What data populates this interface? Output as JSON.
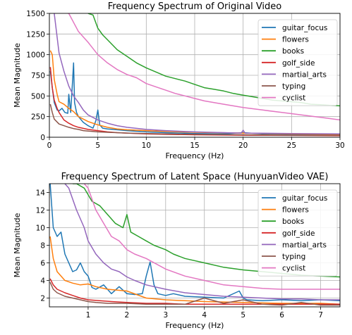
{
  "chart_data": [
    {
      "type": "line",
      "title": "Frequency Spectrum of Original Video",
      "xlabel": "Frequency (Hz)",
      "ylabel": "Mean Magnitude",
      "xlim": [
        0,
        30
      ],
      "ylim": [
        0,
        1500
      ],
      "xticks": [
        0,
        5,
        10,
        15,
        20,
        25,
        30
      ],
      "yticks": [
        0,
        250,
        500,
        750,
        1000,
        1250,
        1500
      ],
      "grid": true,
      "legend_position": "top-right",
      "series": [
        {
          "name": "guitar_focus",
          "color": "#1f77b4",
          "x": [
            0.1,
            0.3,
            0.5,
            0.8,
            1.0,
            1.3,
            1.6,
            1.9,
            2.0,
            2.2,
            2.4,
            2.5,
            2.6,
            2.8,
            3.0,
            3.5,
            4.0,
            4.5,
            4.8,
            5.0,
            5.2,
            5.5,
            6,
            7,
            8,
            10,
            12,
            15,
            18,
            20,
            22,
            25,
            28,
            30
          ],
          "y": [
            800,
            600,
            420,
            330,
            320,
            350,
            300,
            290,
            520,
            300,
            700,
            900,
            420,
            300,
            250,
            180,
            140,
            110,
            200,
            330,
            150,
            110,
            100,
            90,
            80,
            65,
            55,
            45,
            40,
            55,
            40,
            35,
            30,
            30
          ]
        },
        {
          "name": "flowers",
          "color": "#ff7f0e",
          "x": [
            0.1,
            0.3,
            0.5,
            0.8,
            1.0,
            1.5,
            2.0,
            2.5,
            3.0,
            4,
            5,
            6,
            7,
            8,
            10,
            12,
            15,
            20,
            25,
            30
          ],
          "y": [
            1050,
            1000,
            700,
            520,
            430,
            400,
            350,
            310,
            250,
            190,
            150,
            120,
            100,
            90,
            80,
            70,
            60,
            50,
            40,
            35
          ]
        },
        {
          "name": "books",
          "color": "#2ca02c",
          "x": [
            4.0,
            4.5,
            5,
            5.5,
            6,
            7,
            8,
            9,
            10,
            11,
            12,
            13,
            14,
            15,
            16,
            17,
            18,
            19,
            20,
            21,
            22,
            23,
            24,
            25,
            26,
            27,
            28,
            29,
            30
          ],
          "y": [
            1500,
            1480,
            1320,
            1240,
            1180,
            1060,
            980,
            900,
            840,
            790,
            740,
            710,
            680,
            640,
            600,
            580,
            560,
            530,
            510,
            490,
            470,
            450,
            440,
            430,
            420,
            400,
            395,
            385,
            380
          ]
        },
        {
          "name": "golf_side",
          "color": "#d62728",
          "x": [
            0.1,
            0.3,
            0.5,
            0.8,
            1.0,
            1.5,
            2.0,
            2.5,
            3.0,
            4,
            5,
            6,
            7,
            8,
            10,
            12,
            15,
            20,
            25,
            30
          ],
          "y": [
            850,
            600,
            450,
            350,
            300,
            210,
            170,
            140,
            120,
            95,
            80,
            65,
            55,
            50,
            40,
            35,
            30,
            25,
            22,
            20
          ]
        },
        {
          "name": "martial_arts",
          "color": "#9467bd",
          "x": [
            0.5,
            1.0,
            1.5,
            2.0,
            2.5,
            3.0,
            3.5,
            4,
            5,
            6,
            7,
            8,
            10,
            12,
            15,
            19.8,
            20,
            20.2,
            25,
            30
          ],
          "y": [
            1500,
            1020,
            800,
            620,
            500,
            420,
            330,
            270,
            210,
            170,
            140,
            120,
            95,
            80,
            65,
            50,
            85,
            50,
            45,
            40
          ]
        },
        {
          "name": "typing",
          "color": "#8c564b",
          "x": [
            0.1,
            0.3,
            0.5,
            1.0,
            1.5,
            2.0,
            2.5,
            3.0,
            3.5,
            4,
            5,
            6,
            7,
            8,
            10,
            12,
            15,
            20,
            25,
            30
          ],
          "y": [
            400,
            300,
            220,
            160,
            140,
            120,
            105,
            95,
            80,
            75,
            65,
            60,
            55,
            50,
            45,
            40,
            35,
            30,
            25,
            25
          ]
        },
        {
          "name": "cyclist",
          "color": "#e377c2",
          "x": [
            1.9,
            2.0,
            3,
            4,
            5,
            6,
            7,
            8,
            9,
            10,
            11,
            12,
            13,
            14,
            15,
            16,
            18,
            20,
            22,
            24,
            26,
            28,
            30
          ],
          "y": [
            1500,
            1500,
            1280,
            1150,
            1000,
            900,
            820,
            760,
            720,
            650,
            610,
            570,
            530,
            500,
            470,
            440,
            400,
            360,
            330,
            300,
            270,
            240,
            210
          ]
        }
      ]
    },
    {
      "type": "line",
      "title": "Frequency Spectrum of Latent Space (HunyuanVideo VAE)",
      "xlabel": "Frequency (Hz)",
      "ylabel": "Mean Magnitude",
      "xlim": [
        0,
        7.5
      ],
      "ylim": [
        1,
        15
      ],
      "xticks": [
        1,
        2,
        3,
        4,
        5,
        6,
        7
      ],
      "yticks": [
        2,
        4,
        6,
        8,
        10,
        12,
        14
      ],
      "grid": true,
      "legend_position": "top-right",
      "series": [
        {
          "name": "guitar_focus",
          "color": "#1f77b4",
          "x": [
            0.02,
            0.1,
            0.2,
            0.3,
            0.4,
            0.5,
            0.6,
            0.7,
            0.8,
            0.9,
            1.0,
            1.1,
            1.2,
            1.4,
            1.6,
            1.8,
            2.0,
            2.2,
            2.4,
            2.5,
            2.6,
            2.7,
            2.8,
            3.0,
            3.2,
            3.5,
            4,
            4.5,
            4.9,
            5.0,
            5.1,
            5.5,
            6,
            6.5,
            7,
            7.5
          ],
          "y": [
            15,
            10,
            9,
            9.5,
            7,
            6,
            5,
            5.2,
            6,
            5,
            4.5,
            3.2,
            3,
            3.5,
            2.5,
            3.3,
            2.5,
            2.4,
            2.5,
            4.5,
            6.1,
            3.5,
            2.5,
            2.3,
            2.5,
            2.2,
            2.1,
            2.0,
            2.8,
            2.0,
            1.8,
            1.7,
            1.8,
            1.7,
            1.8,
            1.7
          ]
        },
        {
          "name": "flowers",
          "color": "#ff7f0e",
          "x": [
            0.02,
            0.1,
            0.2,
            0.3,
            0.4,
            0.6,
            0.8,
            1.0,
            1.2,
            1.5,
            2.0,
            2.5,
            3,
            3.5,
            4,
            5,
            6,
            7,
            7.5
          ],
          "y": [
            9,
            6.5,
            5,
            4.5,
            4,
            3.7,
            3.5,
            3.6,
            3.3,
            3.0,
            2.8,
            2.0,
            1.8,
            1.7,
            1.6,
            1.5,
            1.4,
            1.4,
            1.3
          ]
        },
        {
          "name": "books",
          "color": "#2ca02c",
          "x": [
            0.6,
            0.7,
            0.9,
            1.1,
            1.3,
            1.5,
            1.7,
            1.9,
            2.0,
            2.1,
            2.3,
            2.5,
            2.7,
            3.0,
            3.2,
            3.5,
            4,
            4.5,
            5,
            5.5,
            6,
            6.5,
            7,
            7.5
          ],
          "y": [
            15,
            15,
            14.5,
            13,
            12.5,
            11.5,
            10.5,
            10,
            11.5,
            9.5,
            9,
            8.5,
            8,
            7.5,
            7,
            6.5,
            6,
            5.5,
            5.2,
            5,
            4.8,
            4.6,
            4.5,
            4.4
          ]
        },
        {
          "name": "golf_side",
          "color": "#d62728",
          "x": [
            0.02,
            0.1,
            0.2,
            0.3,
            0.4,
            0.6,
            0.8,
            1.0,
            1.3,
            1.6,
            2.0,
            2.5,
            3,
            3.5,
            4,
            5,
            6,
            7,
            7.5
          ],
          "y": [
            4.2,
            3.5,
            3.0,
            2.8,
            2.6,
            2.3,
            2.0,
            1.8,
            1.7,
            1.6,
            1.5,
            1.4,
            1.4,
            1.3,
            1.3,
            1.3,
            1.3,
            1.3,
            1.3
          ]
        },
        {
          "name": "martial_arts",
          "color": "#9467bd",
          "x": [
            0.4,
            0.5,
            0.7,
            0.9,
            1.0,
            1.2,
            1.4,
            1.6,
            1.8,
            2.0,
            2.2,
            2.5,
            3,
            3.5,
            4,
            4.5,
            5,
            5.5,
            6,
            6.5,
            7,
            7.5
          ],
          "y": [
            15,
            14.5,
            12,
            10,
            8.5,
            7,
            6,
            5.3,
            5,
            4.4,
            4,
            3.5,
            3.0,
            2.6,
            2.4,
            2.2,
            2.1,
            2.0,
            1.9,
            1.9,
            1.8,
            1.8
          ]
        },
        {
          "name": "typing",
          "color": "#8c564b",
          "x": [
            0.02,
            0.1,
            0.2,
            0.4,
            0.6,
            0.8,
            1.0,
            1.2,
            1.5,
            2.0,
            2.5,
            3,
            3.5,
            4,
            4.5,
            5,
            5.5,
            6,
            6.5,
            7,
            7.5
          ],
          "y": [
            3.8,
            3.0,
            2.6,
            2.2,
            2.0,
            1.8,
            1.6,
            1.5,
            1.4,
            1.4,
            1.3,
            1.3,
            1.3,
            2.0,
            1.4,
            1.8,
            1.3,
            1.2,
            1.5,
            1.2,
            1.2
          ]
        },
        {
          "name": "cyclist",
          "color": "#e377c2",
          "x": [
            0.9,
            1.0,
            1.2,
            1.4,
            1.6,
            1.8,
            2.0,
            2.2,
            2.5,
            3.0,
            3.5,
            4,
            4.5,
            5,
            5.5,
            6,
            6.5,
            7,
            7.5
          ],
          "y": [
            15,
            14.5,
            12,
            10.5,
            9,
            8.5,
            7.5,
            7.0,
            6.5,
            5.3,
            4.5,
            4.0,
            3.5,
            3.3,
            3.1,
            3.0,
            3.0,
            3.0,
            3.0
          ]
        }
      ]
    }
  ]
}
